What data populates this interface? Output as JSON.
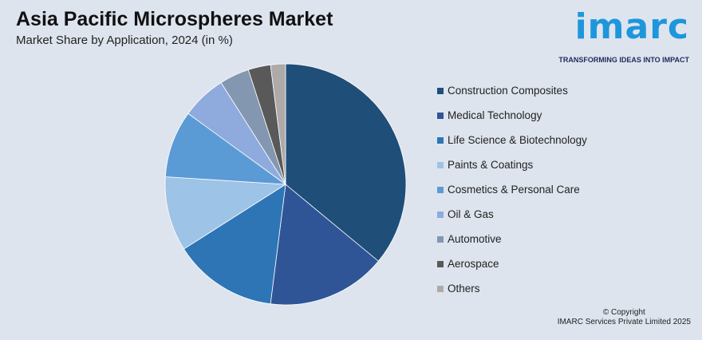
{
  "header": {
    "title": "Asia Pacific Microspheres Market",
    "subtitle": "Market Share by Application, 2024 (in %)"
  },
  "logo": {
    "word": "imarc",
    "tagline": "TRANSFORMING IDEAS INTO IMPACT",
    "color": "#1e96dc"
  },
  "chart_data": {
    "type": "pie",
    "title": "Asia Pacific Microspheres Market",
    "subtitle": "Market Share by Application, 2024 (in %)",
    "categories": [
      "Construction Composites",
      "Medical Technology",
      "Life Science & Biotechnology",
      "Paints & Coatings",
      "Cosmetics & Personal Care",
      "Oil & Gas",
      "Automotive",
      "Aerospace",
      "Others"
    ],
    "values": [
      36,
      16,
      14,
      10,
      9,
      6,
      4,
      3,
      2
    ],
    "colors": [
      "#1f4e79",
      "#2f5597",
      "#2e75b6",
      "#9dc3e6",
      "#5b9bd5",
      "#8faadc",
      "#8497b0",
      "#595959",
      "#aeaaaa"
    ],
    "legend_position": "right"
  },
  "footer": {
    "copyright_line1": "© Copyright",
    "copyright_line2": "IMARC Services Private Limited 2025"
  }
}
